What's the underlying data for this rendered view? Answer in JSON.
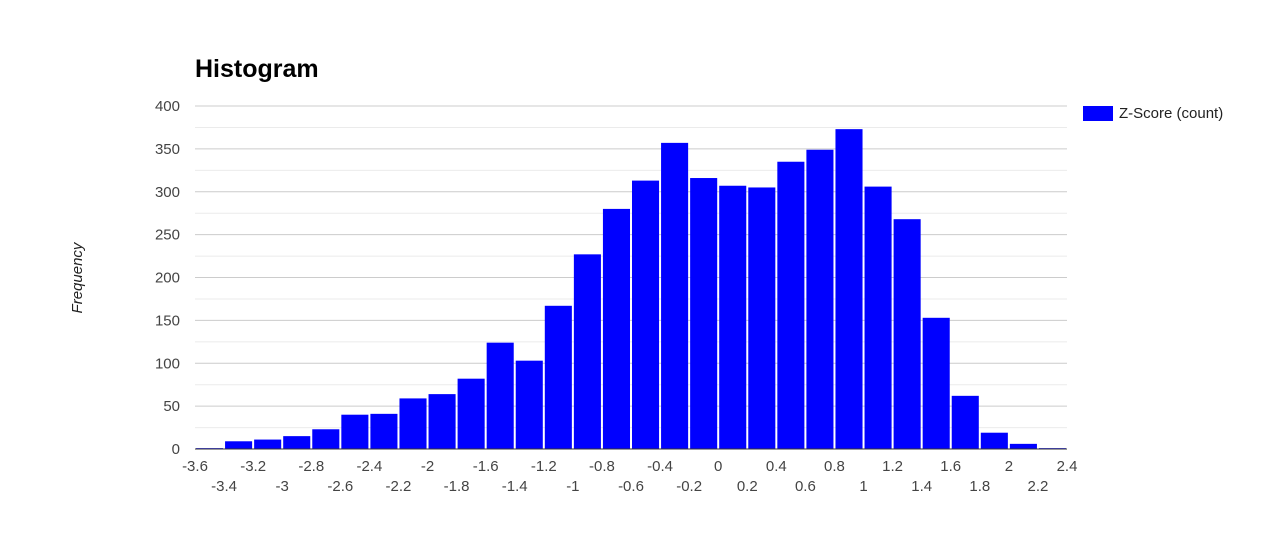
{
  "chart_data": {
    "type": "bar",
    "title": "Histogram",
    "ylabel": "Frequency",
    "xlabel": "",
    "bin_width": 0.2,
    "bin_start": -3.6,
    "values": [
      1,
      9,
      11,
      15,
      23,
      40,
      41,
      59,
      64,
      82,
      124,
      103,
      167,
      227,
      280,
      313,
      357,
      316,
      307,
      305,
      335,
      349,
      373,
      306,
      268,
      153,
      62,
      19,
      6,
      1
    ],
    "ylim": [
      0,
      400
    ],
    "xlim": [
      -3.6,
      2.4
    ],
    "yticks": [
      "0",
      "50",
      "100",
      "150",
      "200",
      "250",
      "300",
      "350",
      "400"
    ],
    "xticks_row1": [
      "-3.6",
      "-3.2",
      "-2.8",
      "-2.4",
      "-2",
      "-1.6",
      "-1.2",
      "-0.8",
      "-0.4",
      "0",
      "0.4",
      "0.8",
      "1.2",
      "1.6",
      "2",
      "2.4"
    ],
    "xticks_row2": [
      "-3.4",
      "-3",
      "-2.6",
      "-2.2",
      "-1.8",
      "-1.4",
      "-1",
      "-0.6",
      "-0.2",
      "0.2",
      "0.6",
      "1",
      "1.4",
      "1.8",
      "2.2"
    ],
    "grid": true,
    "legend": {
      "position": "right",
      "entries": [
        {
          "name": "Z-Score (count)",
          "color": "#0000ff"
        }
      ]
    },
    "series": [
      {
        "name": "Z-Score (count)",
        "color": "#0000ff"
      }
    ]
  }
}
